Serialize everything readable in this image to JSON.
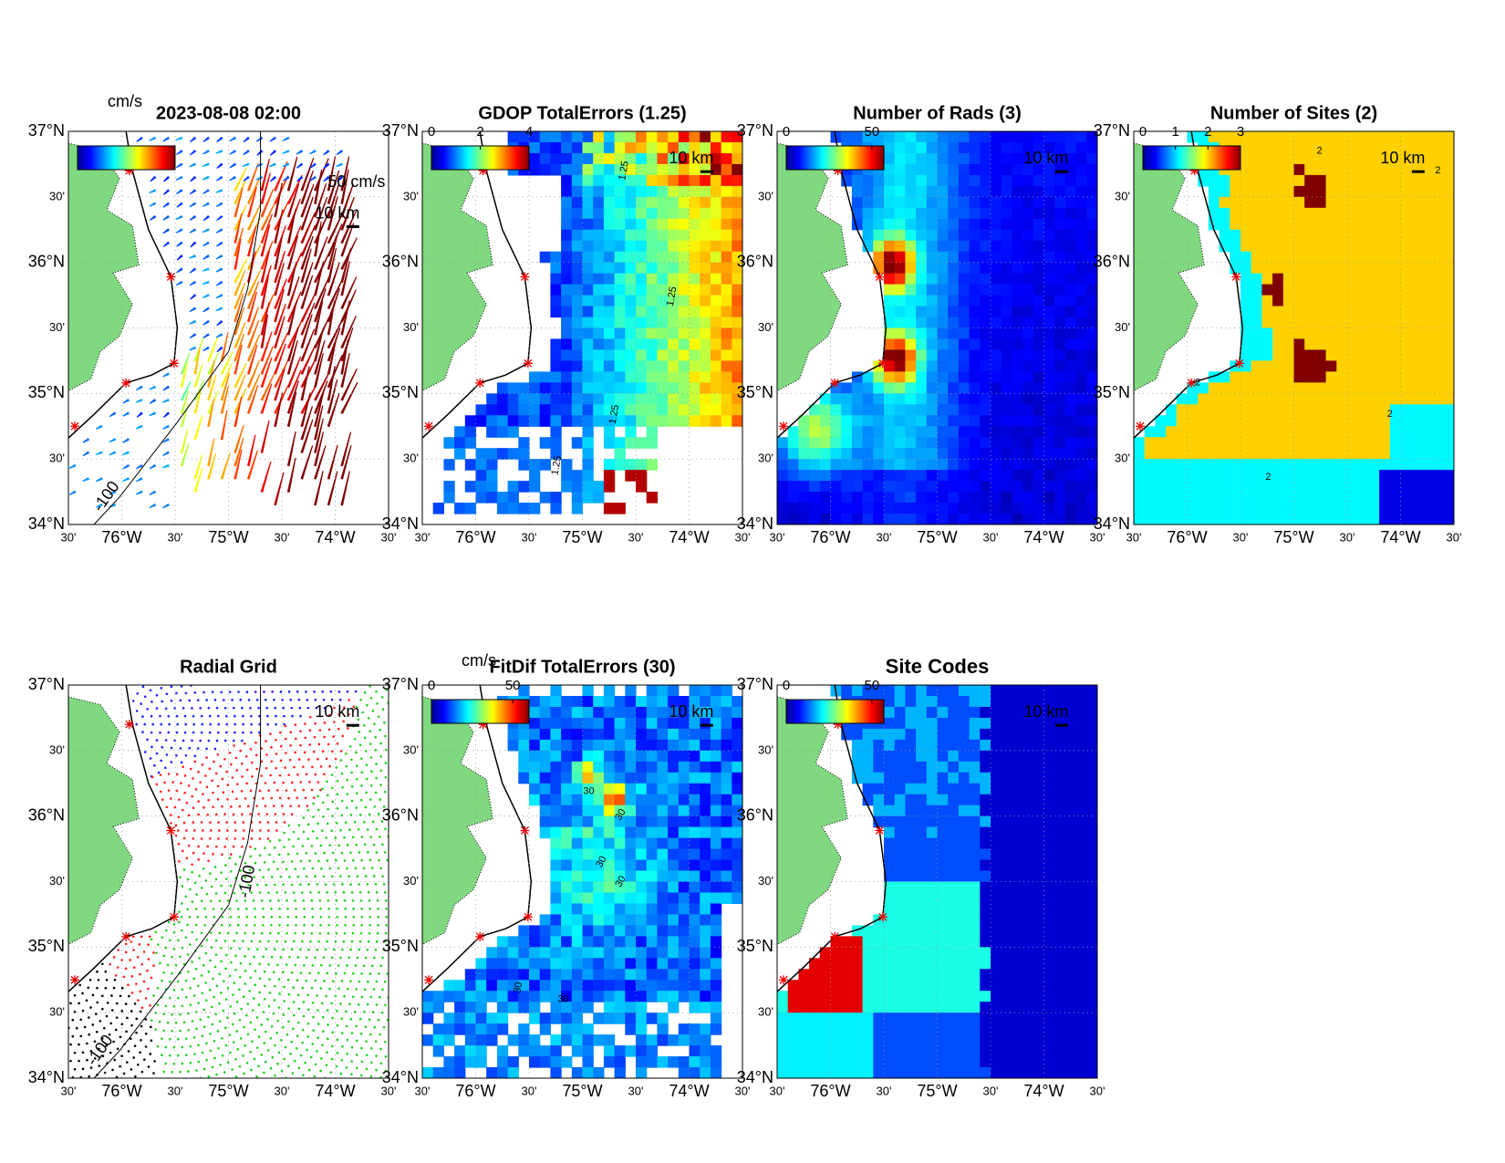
{
  "lat_ticks": [
    "37°N",
    "30'",
    "36°N",
    "30'",
    "35°N",
    "30'",
    "34°N"
  ],
  "lon_ticks": [
    "30'",
    "76°W",
    "30'",
    "75°W",
    "30'",
    "74°W",
    "30'"
  ],
  "panels": [
    {
      "title": "2023-08-08 02:00",
      "colorbar_label": "cm/s",
      "scale_label": "50 cm/s",
      "distance_label": "10 km",
      "contour_labels": [
        -100
      ]
    },
    {
      "title": "GDOP TotalErrors (1.25)",
      "cbar_lim": [
        0,
        4
      ],
      "cbar_ticks": [
        0,
        2,
        4
      ],
      "distance_label": "10 km",
      "contour_labels": [
        1.25,
        1.25,
        1.25,
        1.25
      ]
    },
    {
      "title": "Number of Rads (3)",
      "cbar_lim": [
        0,
        57
      ],
      "cbar_ticks": [
        0,
        50
      ],
      "distance_label": "10 km"
    },
    {
      "title": "Number of Sites (2)",
      "cbar_lim": [
        0,
        3
      ],
      "cbar_ticks": [
        0,
        1,
        2,
        3
      ],
      "distance_label": "10 km",
      "contour_labels": [
        2,
        2,
        2,
        2,
        2
      ]
    },
    {
      "title": "Radial Grid",
      "distance_label": "10 km",
      "contour_labels": [
        -100,
        -100
      ]
    },
    {
      "title": "FitDif TotalErrors (30)",
      "colorbar_label": "cm/s",
      "cbar_lim": [
        0,
        60
      ],
      "cbar_ticks": [
        0,
        50
      ],
      "distance_label": "10 km",
      "contour_labels": [
        30,
        30,
        30,
        30,
        30,
        30
      ]
    },
    {
      "title": "Site Codes",
      "cbar_lim": [
        0,
        57
      ],
      "cbar_ticks": [
        0,
        50
      ],
      "distance_label": "10 km"
    }
  ]
}
